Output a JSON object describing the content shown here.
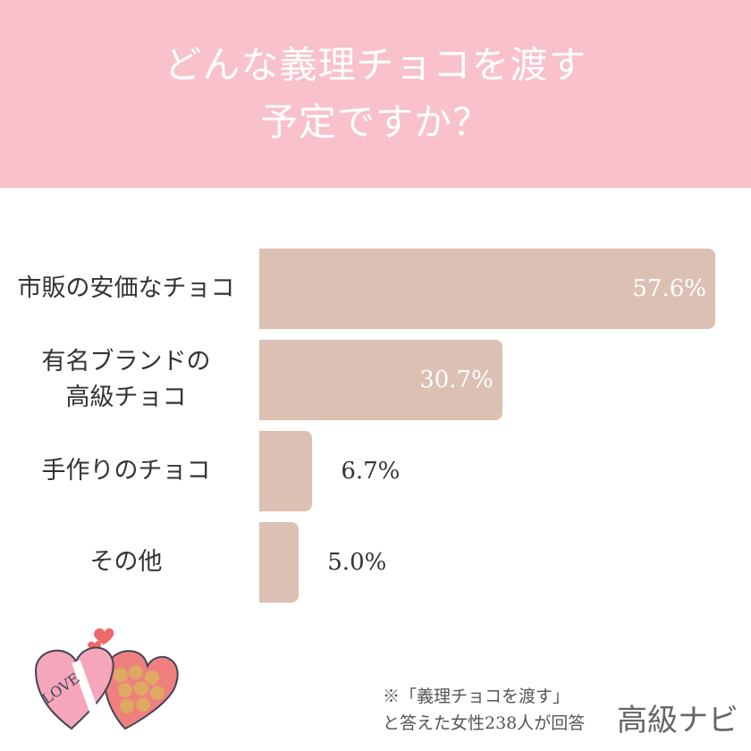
{
  "header": {
    "title_line1": "どんな義理チョコを渡す",
    "title_line2": "予定ですか？"
  },
  "colors": {
    "header_bg": "#f9c1cb",
    "bar": "#dcc0b4"
  },
  "chart_data": {
    "type": "bar",
    "orientation": "horizontal",
    "title": "どんな義理チョコを渡す予定ですか？",
    "categories": [
      [
        "市販の安価なチョコ"
      ],
      [
        "有名ブランドの",
        "高級チョコ"
      ],
      [
        "手作りのチョコ"
      ],
      [
        "その他"
      ]
    ],
    "values": [
      57.6,
      30.7,
      6.7,
      5.0
    ],
    "value_labels": [
      "57.6%",
      "30.7%",
      "6.7%",
      "5.0%"
    ],
    "unit": "%"
  },
  "footer": {
    "note_line1": "※「義理チョコを渡す」",
    "note_line2": "と答えた女性238人が回答",
    "brand": "高級ナビ"
  },
  "illustration": {
    "icon": "heart-chocolate-box-icon",
    "text": "LOVE"
  }
}
